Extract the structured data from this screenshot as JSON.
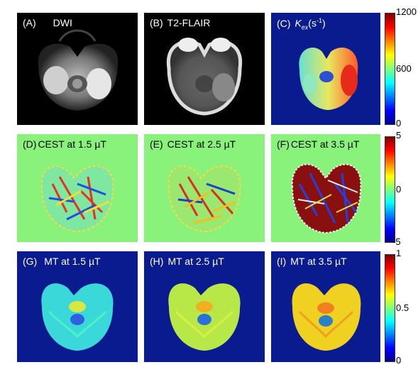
{
  "panels": {
    "a": {
      "tag": "(A)",
      "title": "DWI"
    },
    "b": {
      "tag": "(B)",
      "title": "T2-FLAIR"
    },
    "c": {
      "tag": "(C)",
      "k": "K",
      "k_sub": "ex",
      "unit_open": "(s",
      "unit_sup": "-1",
      "unit_close": ")"
    },
    "d": {
      "tag": "(D)",
      "title": "CEST at 1.5 µT"
    },
    "e": {
      "tag": "(E)",
      "title": "CEST at 2.5 µT"
    },
    "f": {
      "tag": "(F)",
      "title": "CEST at 3.5 µT"
    },
    "g": {
      "tag": "(G)",
      "title": "MT at 1.5 µT"
    },
    "h": {
      "tag": "(H)",
      "title": "MT at 2.5 µT"
    },
    "i": {
      "tag": "(I)",
      "title": "MT at 3.5 µT"
    }
  },
  "colorbars": {
    "kex": {
      "max": "1200",
      "mid": "600",
      "min": "0"
    },
    "cest": {
      "max": "5",
      "mid": "0",
      "min": "-5"
    },
    "mt": {
      "max": "1",
      "mid": "0.5",
      "min": "0"
    }
  },
  "colors": {
    "background_cest": "#88f27a",
    "background_mt": "#0a1a8f",
    "background_kex": "#0a1a8f",
    "mri_background": "#000000"
  }
}
